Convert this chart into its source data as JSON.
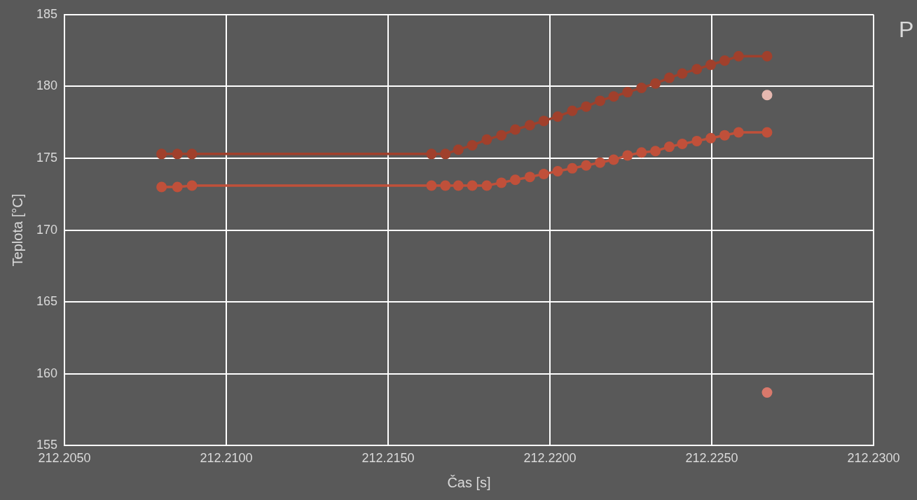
{
  "chart_data": {
    "type": "line",
    "xlabel": "Čas [s]",
    "ylabel": "Teplota [°C]",
    "xlim": [
      212.205,
      212.23
    ],
    "xticks": [
      {
        "value": 212.205,
        "label": "212.2050"
      },
      {
        "value": 212.21,
        "label": "212.2100"
      },
      {
        "value": 212.215,
        "label": "212.2150"
      },
      {
        "value": 212.22,
        "label": "212.2200"
      },
      {
        "value": 212.225,
        "label": "212.2250"
      },
      {
        "value": 212.23,
        "label": "212.2300"
      }
    ],
    "ylim": [
      155,
      185
    ],
    "yticks": [
      155,
      160,
      165,
      170,
      175,
      180,
      185
    ],
    "grid": true,
    "marker": "circle",
    "line_style": "solid",
    "annotations": [
      "P"
    ],
    "series": [
      {
        "color": "#a0402c",
        "x": [
          212.208,
          212.20849,
          212.20894,
          212.21634,
          212.21677,
          212.21717,
          212.2176,
          212.21805,
          212.2185,
          212.21893,
          212.21938,
          212.21981,
          212.22024,
          212.22069,
          212.22112,
          212.22155,
          212.22197,
          212.2224,
          212.22283,
          212.22326,
          212.22369,
          212.22409,
          212.22454,
          212.22497,
          212.2254,
          212.22583,
          212.22671
        ],
        "values": [
          175.3,
          175.3,
          175.3,
          175.3,
          175.3,
          175.6,
          175.9,
          176.3,
          176.6,
          177.0,
          177.3,
          177.6,
          177.9,
          178.3,
          178.6,
          179.0,
          179.3,
          179.6,
          179.9,
          180.2,
          180.6,
          180.9,
          181.2,
          181.5,
          181.8,
          182.1,
          182.1
        ]
      },
      {
        "color": "#c0503a",
        "x": [
          212.208,
          212.20849,
          212.20894,
          212.21634,
          212.21677,
          212.21717,
          212.2176,
          212.21805,
          212.2185,
          212.21893,
          212.21938,
          212.21981,
          212.22024,
          212.22069,
          212.22112,
          212.22155,
          212.22197,
          212.2224,
          212.22283,
          212.22326,
          212.22369,
          212.22409,
          212.22454,
          212.22497,
          212.2254,
          212.22583,
          212.22671
        ],
        "values": [
          173.0,
          173.0,
          173.1,
          173.1,
          173.1,
          173.1,
          173.1,
          173.1,
          173.3,
          173.5,
          173.7,
          173.9,
          174.1,
          174.3,
          174.5,
          174.7,
          174.9,
          175.2,
          175.4,
          175.5,
          175.8,
          176.0,
          176.2,
          176.4,
          176.6,
          176.8,
          176.8
        ]
      },
      {
        "type": "scatter",
        "color": "#e6b8b0",
        "x": [
          212.22671
        ],
        "values": [
          179.4
        ]
      },
      {
        "type": "scatter",
        "color": "#d9796c",
        "x": [
          212.22671
        ],
        "values": [
          158.7
        ]
      }
    ]
  }
}
